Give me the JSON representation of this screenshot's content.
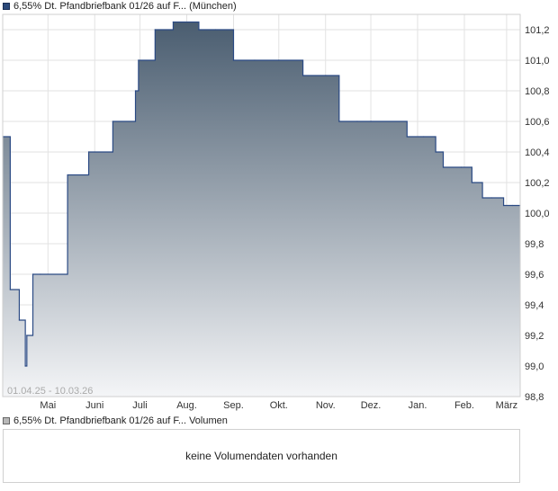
{
  "legend_price": "6,55% Dt. Pfandbriefbank 01/26 auf F... (München)",
  "legend_volume": "6,55% Dt. Pfandbriefbank 01/26 auf F... Volumen",
  "date_range": "01.04.25 - 10.03.26",
  "volume_message": "keine Volumendaten vorhanden",
  "colors": {
    "line": "#2b4a84",
    "fill_top": "#4a5d70",
    "fill_bottom": "#f4f5f7",
    "grid": "#e2e2e2",
    "border": "#cfcfcf"
  },
  "chart_data": {
    "type": "area",
    "title": "6,55% Dt. Pfandbriefbank 01/26 auf F... (München)",
    "xlabel": "",
    "ylabel": "",
    "ylim": [
      98.8,
      101.3
    ],
    "y_ticks": [
      "101,2",
      "101,0",
      "100,8",
      "100,6",
      "100,4",
      "100,2",
      "100,0",
      "99,8",
      "99,6",
      "99,4",
      "99,2",
      "99,0",
      "98,8"
    ],
    "x_tick_labels": [
      "Mai",
      "Juni",
      "Juli",
      "Aug.",
      "Sep.",
      "Okt.",
      "Nov.",
      "Dez.",
      "Jan.",
      "Feb.",
      "März"
    ],
    "x_range": [
      "01.04.25",
      "10.03.26"
    ],
    "grid": true,
    "x_ticks": [
      {
        "date": "2025-05-01",
        "label": "Mai"
      },
      {
        "date": "2025-06-01",
        "label": "Juni"
      },
      {
        "date": "2025-07-01",
        "label": "Juli"
      },
      {
        "date": "2025-08-01",
        "label": "Aug."
      },
      {
        "date": "2025-09-01",
        "label": "Sep."
      },
      {
        "date": "2025-10-01",
        "label": "Okt."
      },
      {
        "date": "2025-11-01",
        "label": "Nov."
      },
      {
        "date": "2025-12-01",
        "label": "Dez."
      },
      {
        "date": "2026-01-01",
        "label": "Jan."
      },
      {
        "date": "2026-02-01",
        "label": "Feb."
      },
      {
        "date": "2026-03-01",
        "label": "März"
      }
    ],
    "series": [
      {
        "x": [
          "2025-04-01",
          "2025-04-06",
          "2025-04-12",
          "2025-04-16",
          "2025-04-17",
          "2025-04-21",
          "2025-04-26",
          "2025-05-14",
          "2025-05-28",
          "2025-06-13",
          "2025-06-28",
          "2025-06-30",
          "2025-07-11",
          "2025-07-23",
          "2025-08-09",
          "2025-08-20",
          "2025-09-01",
          "2025-09-15",
          "2025-10-01",
          "2025-10-17",
          "2025-11-01",
          "2025-11-10",
          "2025-11-22",
          "2025-12-01",
          "2025-12-25",
          "2026-01-05",
          "2026-01-13",
          "2026-01-18",
          "2026-01-30",
          "2026-02-06",
          "2026-02-13",
          "2026-02-19",
          "2026-02-27",
          "2026-03-05",
          "2026-03-10"
        ],
        "values": [
          100.5,
          99.5,
          99.3,
          99.0,
          99.2,
          99.6,
          99.6,
          100.25,
          100.4,
          100.6,
          100.8,
          101.0,
          101.2,
          101.25,
          101.2,
          101.2,
          101.0,
          101.0,
          101.0,
          100.9,
          100.9,
          100.6,
          100.6,
          100.6,
          100.5,
          100.5,
          100.4,
          100.3,
          100.3,
          100.2,
          100.1,
          100.1,
          100.05,
          100.05,
          100.05
        ]
      }
    ]
  }
}
